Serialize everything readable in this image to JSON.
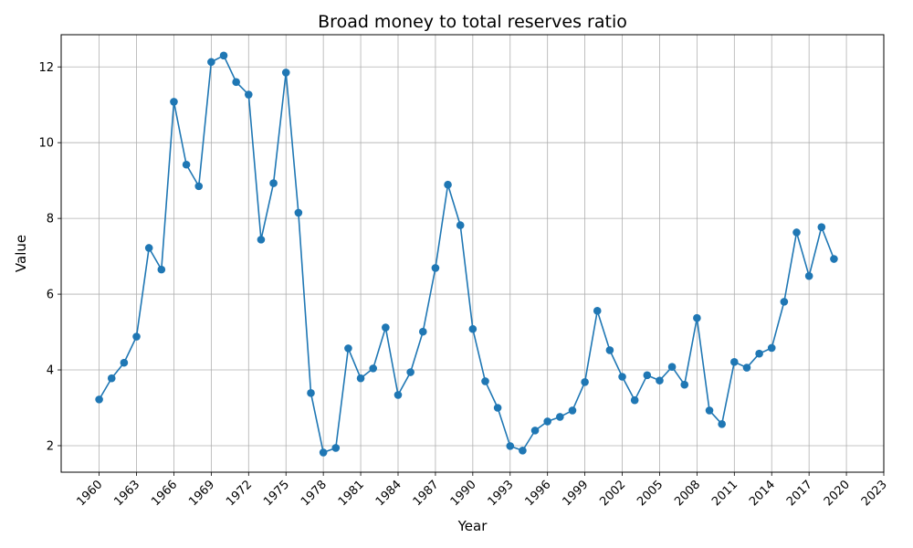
{
  "chart_data": {
    "type": "line",
    "title": "Broad money to total reserves ratio",
    "xlabel": "Year",
    "ylabel": "Value",
    "xlim": [
      1956.95,
      2023
    ],
    "ylim": [
      1.3,
      12.85
    ],
    "grid": true,
    "x_ticks": [
      1960,
      1963,
      1966,
      1969,
      1972,
      1975,
      1978,
      1981,
      1984,
      1987,
      1990,
      1993,
      1996,
      1999,
      2002,
      2005,
      2008,
      2011,
      2014,
      2017,
      2020,
      2023
    ],
    "y_ticks": [
      2,
      4,
      6,
      8,
      10,
      12
    ],
    "series_color": "#1f77b4",
    "marker": "circle",
    "x": [
      1960,
      1961,
      1962,
      1963,
      1964,
      1965,
      1966,
      1967,
      1968,
      1969,
      1970,
      1971,
      1972,
      1973,
      1974,
      1975,
      1976,
      1977,
      1978,
      1979,
      1980,
      1981,
      1982,
      1983,
      1984,
      1985,
      1986,
      1987,
      1988,
      1989,
      1990,
      1991,
      1992,
      1993,
      1994,
      1995,
      1996,
      1997,
      1998,
      1999,
      2000,
      2001,
      2002,
      2003,
      2004,
      2005,
      2006,
      2007,
      2008,
      2009,
      2010,
      2011,
      2012,
      2013,
      2014,
      2015,
      2016,
      2017,
      2018,
      2019
    ],
    "y": [
      3.22,
      3.78,
      4.19,
      4.88,
      7.22,
      6.65,
      11.08,
      9.42,
      8.85,
      12.13,
      12.3,
      11.6,
      11.27,
      7.44,
      8.93,
      11.85,
      8.15,
      3.39,
      1.82,
      1.94,
      4.57,
      3.78,
      4.04,
      5.12,
      3.34,
      3.94,
      5.01,
      6.69,
      8.89,
      7.82,
      5.08,
      3.7,
      3.0,
      1.99,
      1.87,
      2.4,
      2.64,
      2.76,
      2.93,
      3.68,
      5.56,
      4.52,
      3.82,
      3.2,
      3.86,
      3.72,
      4.08,
      3.61,
      5.37,
      2.93,
      2.57,
      4.21,
      4.06,
      4.43,
      4.58,
      5.8,
      7.63,
      6.48,
      7.77,
      6.93
    ]
  }
}
